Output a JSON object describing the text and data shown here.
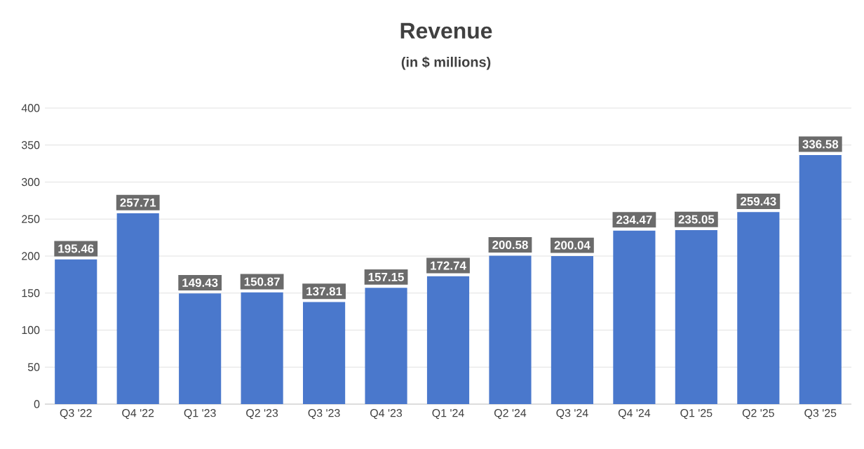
{
  "chart_data": {
    "type": "bar",
    "title": "Revenue",
    "subtitle": "(in $ millions)",
    "categories": [
      "Q3 '22",
      "Q4 '22",
      "Q1 '23",
      "Q2 '23",
      "Q3 '23",
      "Q4 '23",
      "Q1 '24",
      "Q2 '24",
      "Q3 '24",
      "Q4 '24",
      "Q1 '25",
      "Q2 '25",
      "Q3 '25"
    ],
    "values": [
      195.46,
      257.71,
      149.43,
      150.87,
      137.81,
      157.15,
      172.74,
      200.58,
      200.04,
      234.47,
      235.05,
      259.43,
      336.58
    ],
    "color": "#4a78cc",
    "ylim": [
      0,
      400
    ],
    "yticks": [
      0,
      50,
      100,
      150,
      200,
      250,
      300,
      350,
      400
    ],
    "grid": "y",
    "data_labels": true
  }
}
